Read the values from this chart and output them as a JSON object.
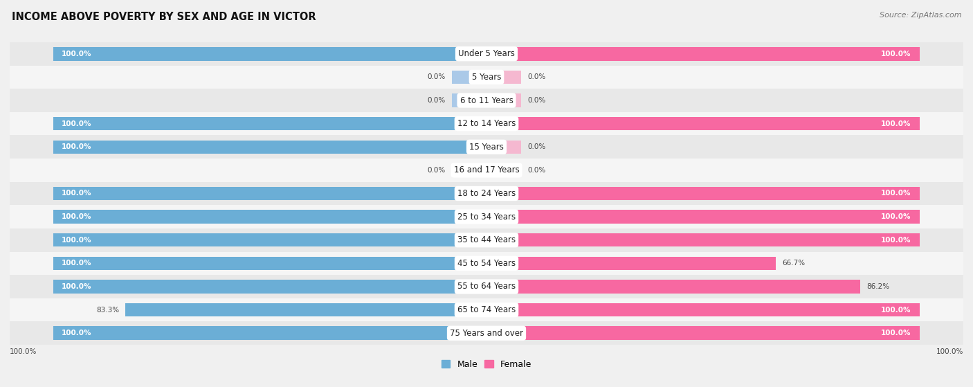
{
  "title": "INCOME ABOVE POVERTY BY SEX AND AGE IN VICTOR",
  "source": "Source: ZipAtlas.com",
  "categories": [
    "Under 5 Years",
    "5 Years",
    "6 to 11 Years",
    "12 to 14 Years",
    "15 Years",
    "16 and 17 Years",
    "18 to 24 Years",
    "25 to 34 Years",
    "35 to 44 Years",
    "45 to 54 Years",
    "55 to 64 Years",
    "65 to 74 Years",
    "75 Years and over"
  ],
  "male": [
    100.0,
    0.0,
    0.0,
    100.0,
    100.0,
    0.0,
    100.0,
    100.0,
    100.0,
    100.0,
    100.0,
    83.3,
    100.0
  ],
  "female": [
    100.0,
    0.0,
    0.0,
    100.0,
    0.0,
    0.0,
    100.0,
    100.0,
    100.0,
    66.7,
    86.2,
    100.0,
    100.0
  ],
  "male_color": "#6baed6",
  "female_color": "#f768a1",
  "male_color_light": "#aac9e8",
  "female_color_light": "#f5b8d0",
  "bg_color": "#f0f0f0",
  "row_bg_even": "#e8e8e8",
  "row_bg_odd": "#f5f5f5",
  "title_fontsize": 10.5,
  "label_fontsize": 8.5,
  "value_fontsize": 7.5,
  "legend_fontsize": 9,
  "stub_size": 8.0
}
